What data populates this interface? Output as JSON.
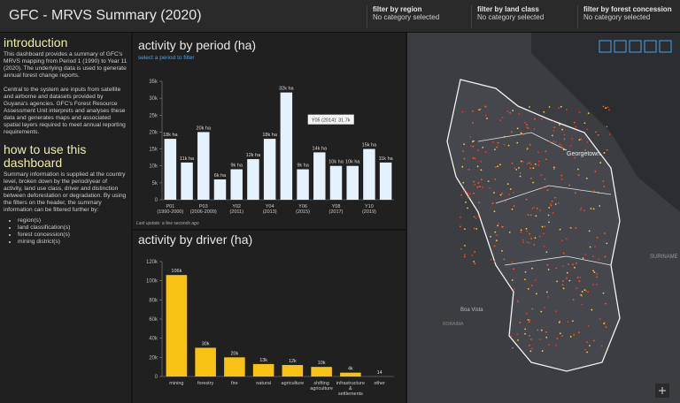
{
  "header": {
    "title": "GFC - MRVS Summary (2020)",
    "filters": [
      {
        "label": "filter by region",
        "value": "No category selected"
      },
      {
        "label": "filter by land class",
        "value": "No category selected"
      },
      {
        "label": "filter by forest concession",
        "value": "No category selected"
      }
    ]
  },
  "sidebar": {
    "intro_heading": "introduction",
    "intro_paragraphs": [
      "This dashboard provides a summary of GFC's MRVS mapping from Period 1 (1990) to Year 11 (2020). The underlying data is used to generate annual forest change reports.",
      "Central to the system are inputs from satellite and airborne and datasets provided by Guyana's agencies. GFC's Forest Resource Assessment Unit interprets and analyses these data and generates maps and associated spatial layers required to meet annual reporting requirements."
    ],
    "howto_heading": "how to use this dashboard",
    "howto_paragraph": "Summary information is supplied at the country level, broken down by the period/year of activity, land use class, driver and distinction between deforestation or degradation. By using the filters on the header, the summary information can be filtered further by:",
    "filter_list": [
      "region(s)",
      "land classification(s)",
      "forest concession(s)",
      "mining district(s)"
    ]
  },
  "charts": [
    {
      "type": "bar",
      "title": "activity by period (ha)",
      "subtitle": "select a period to filter",
      "categories": [
        "P01 (1990-2000)",
        null,
        "P03 (2006-2009)",
        null,
        "Y02 (2011)",
        null,
        "Y04 (2013)",
        null,
        "Y06 (2015)",
        null,
        "Y08 (2017)",
        null,
        "Y10 (2019)",
        null
      ],
      "values": [
        18000,
        11000,
        20000,
        6000,
        9000,
        12000,
        18000,
        31700,
        9000,
        14000,
        10000,
        10000,
        15000,
        11000
      ],
      "value_labels": [
        "18k ha",
        "11k ha",
        "20k ha",
        "6k ha",
        "9k ha",
        "12k ha",
        "18k ha",
        "32k ha",
        "9k ha",
        "14k ha",
        "10k ha",
        "10k ha",
        "15k ha",
        "11k ha"
      ],
      "color": "#e6f2fb",
      "ylim": [
        0,
        35000
      ],
      "yticks": [
        0,
        {
          "value": 5000,
          "label": "5k"
        },
        {
          "value": 10000,
          "label": "10k"
        },
        {
          "value": 15000,
          "label": "15k"
        },
        {
          "value": 20000,
          "label": "20k"
        },
        {
          "value": 25000,
          "label": "25k"
        },
        {
          "value": 30000,
          "label": "30k"
        },
        {
          "value": 35000,
          "label": "35k"
        }
      ],
      "tooltip": "Y05 (2014): 31.7k",
      "footer": "Last update: a few seconds ago"
    },
    {
      "type": "bar",
      "title": "activity by driver (ha)",
      "categories": [
        "mining",
        "forestry",
        "fire",
        "natural",
        "agriculture",
        "shifting agriculture",
        "infrastructure & settlements",
        "other"
      ],
      "values": [
        106000,
        30000,
        20000,
        13000,
        12000,
        10000,
        4000,
        14
      ],
      "value_labels": [
        "106k",
        "30k",
        "20k",
        "13k",
        "12k",
        "10k",
        "4k",
        "14"
      ],
      "color": "#f7c213",
      "ylim": [
        0,
        120000
      ],
      "yticks": [
        0,
        {
          "value": 20000,
          "label": "20k"
        },
        {
          "value": 40000,
          "label": "40k"
        },
        {
          "value": 60000,
          "label": "60k"
        },
        {
          "value": 80000,
          "label": "80k"
        },
        {
          "value": 100000,
          "label": "100k"
        },
        {
          "value": 120000,
          "label": "120k"
        }
      ]
    }
  ],
  "map": {
    "labels": [
      "Georgetown",
      "Boa Vista",
      "SURINAME",
      "RORAIMA"
    ]
  }
}
